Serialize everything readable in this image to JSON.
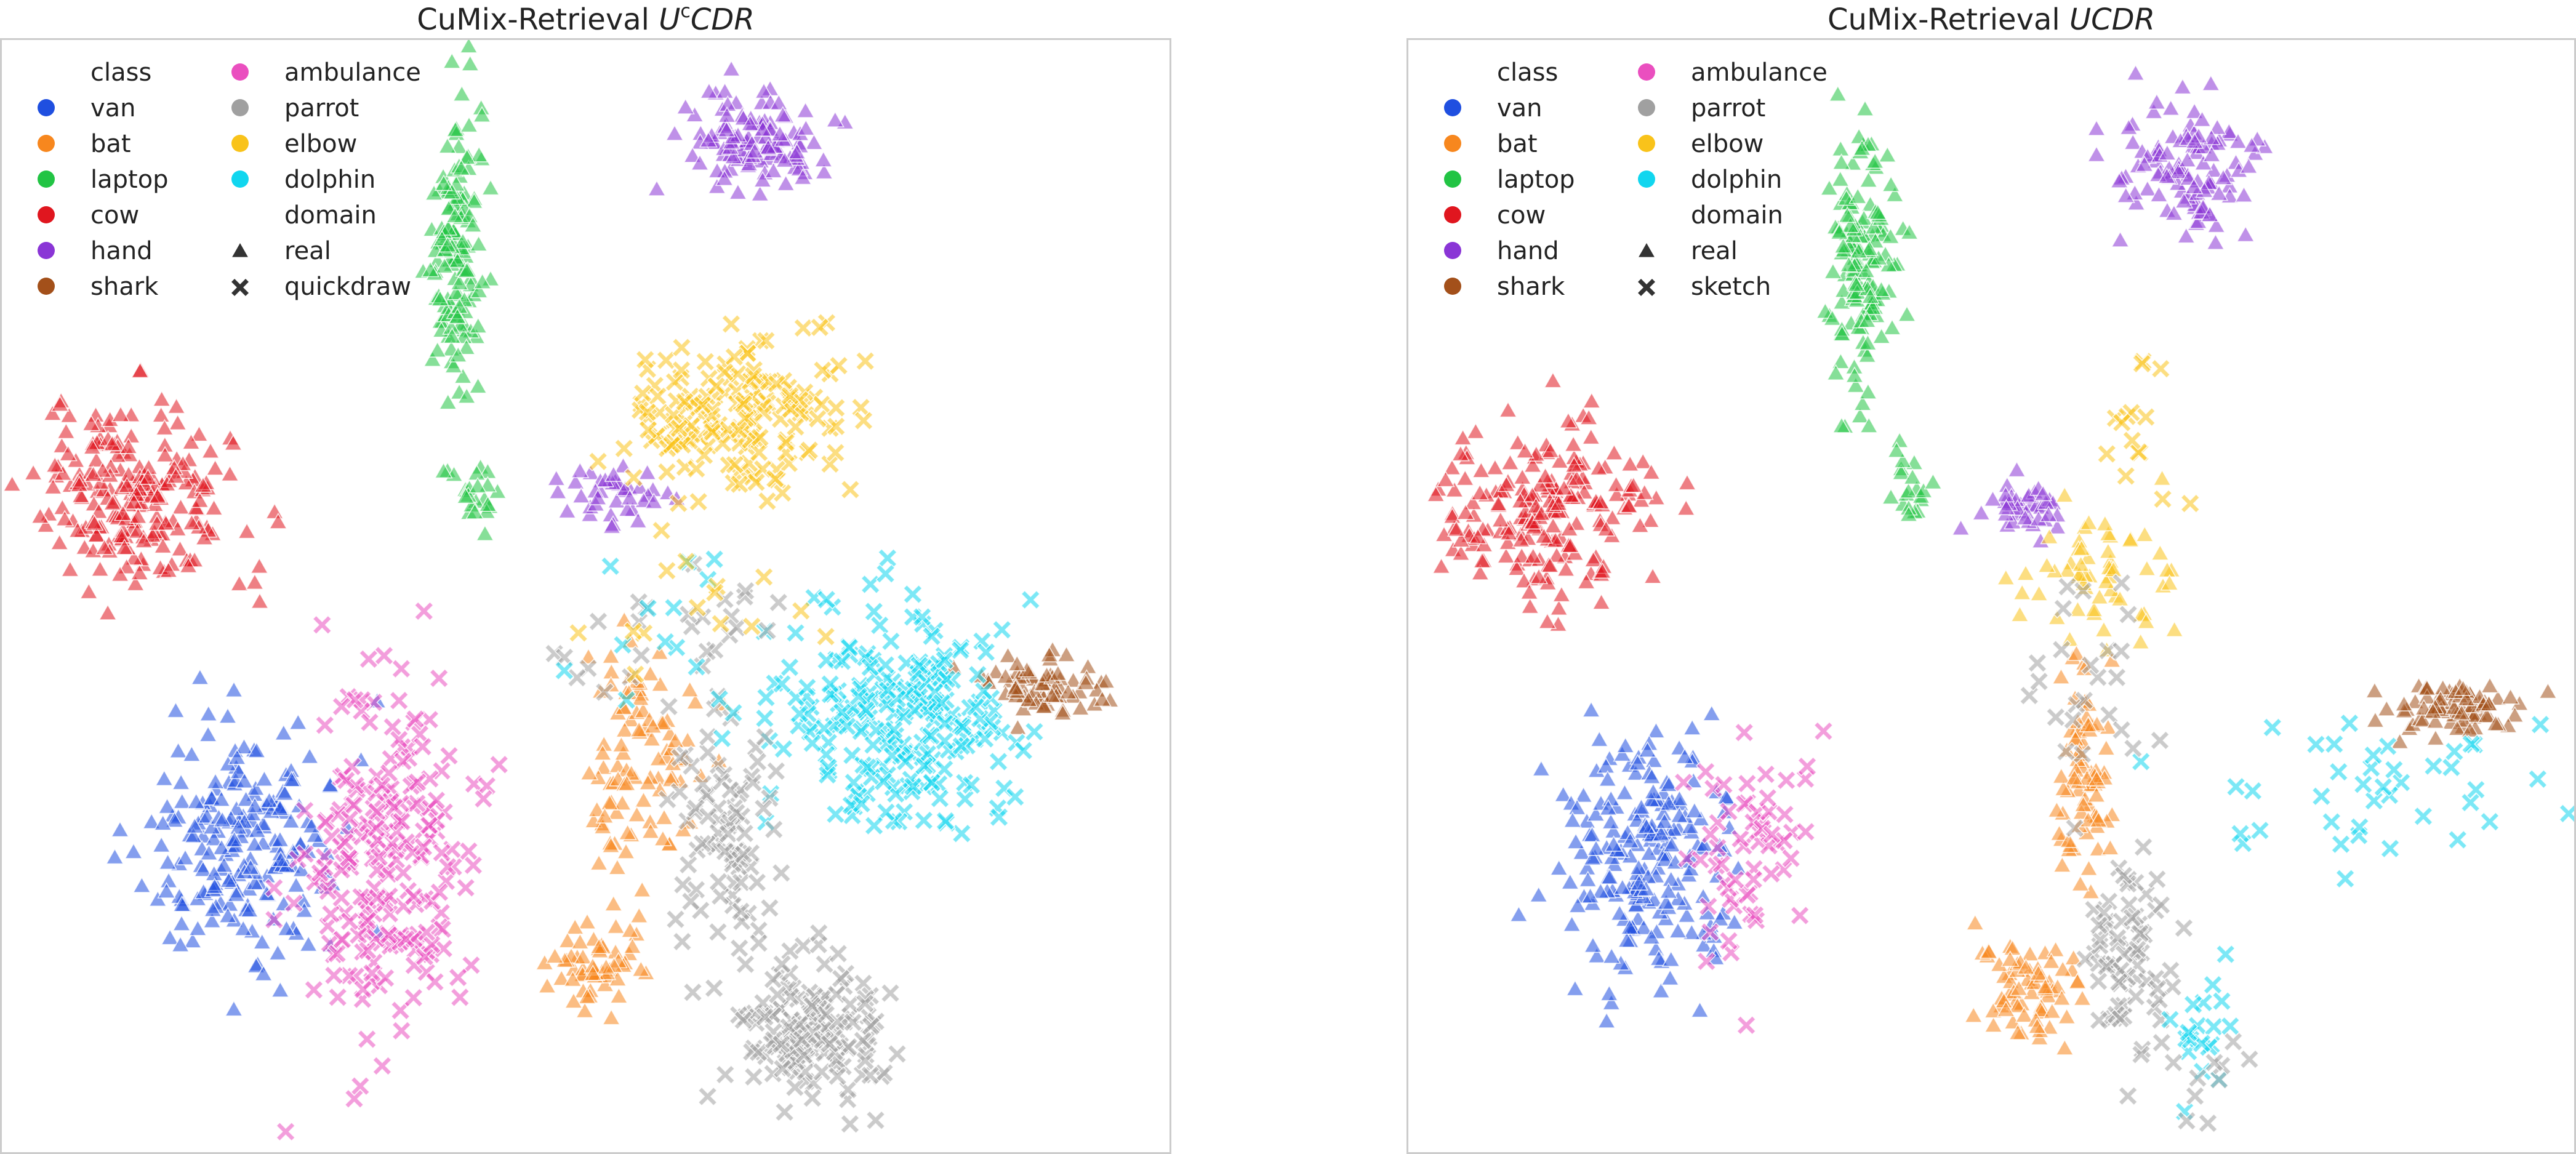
{
  "figure": {
    "background": "#ffffff",
    "frame_color": "#cccccc"
  },
  "chart_data": [
    {
      "type": "scatter",
      "title": "CuMix-Retrieval UᶜCDR",
      "title_parts": [
        "CuMix-Retrieval ",
        "U",
        "c",
        "CDR"
      ],
      "xlabel": "",
      "ylabel": "",
      "xlim": [
        0,
        100
      ],
      "ylim": [
        0,
        100
      ],
      "grid": false,
      "legend_position": "top-left",
      "legend": {
        "class_title": "class",
        "domain_title": "domain",
        "classes": [
          {
            "name": "van",
            "color": "#1f4fe0"
          },
          {
            "name": "bat",
            "color": "#f7871e"
          },
          {
            "name": "laptop",
            "color": "#22c444"
          },
          {
            "name": "cow",
            "color": "#e0161f"
          },
          {
            "name": "hand",
            "color": "#8a35d6"
          },
          {
            "name": "shark",
            "color": "#a3501a"
          },
          {
            "name": "ambulance",
            "color": "#ea4fbf"
          },
          {
            "name": "parrot",
            "color": "#a0a0a0"
          },
          {
            "name": "elbow",
            "color": "#f9c31a"
          },
          {
            "name": "dolphin",
            "color": "#11d6ef"
          }
        ],
        "domains": [
          {
            "name": "real",
            "marker": "triangle"
          },
          {
            "name": "quickdraw",
            "marker": "cross"
          }
        ]
      },
      "clusters": [
        {
          "class": "cow",
          "domain": "real",
          "cx": 12,
          "cy": 59,
          "rx": 7.5,
          "ry": 7.5,
          "n": 220
        },
        {
          "class": "laptop",
          "domain": "real",
          "cx": 39,
          "cy": 80,
          "rx": 1.8,
          "ry": 12,
          "n": 150
        },
        {
          "class": "laptop",
          "domain": "real",
          "cx": 41,
          "cy": 59,
          "rx": 1.5,
          "ry": 2.5,
          "n": 20
        },
        {
          "class": "hand",
          "domain": "real",
          "cx": 64,
          "cy": 91,
          "rx": 6,
          "ry": 4,
          "n": 120
        },
        {
          "class": "hand",
          "domain": "real",
          "cx": 52,
          "cy": 59,
          "rx": 4,
          "ry": 2.5,
          "n": 40
        },
        {
          "class": "elbow",
          "domain": "quickdraw",
          "cx": 63,
          "cy": 66,
          "rx": 9,
          "ry": 6,
          "n": 170
        },
        {
          "class": "shark",
          "domain": "real",
          "cx": 89,
          "cy": 42,
          "rx": 5,
          "ry": 2.5,
          "n": 70
        },
        {
          "class": "dolphin",
          "domain": "quickdraw",
          "cx": 77,
          "cy": 39,
          "rx": 9,
          "ry": 9,
          "n": 230
        },
        {
          "class": "van",
          "domain": "real",
          "cx": 21,
          "cy": 28,
          "rx": 7,
          "ry": 10,
          "n": 210
        },
        {
          "class": "ambulance",
          "domain": "quickdraw",
          "cx": 33,
          "cy": 26,
          "rx": 6,
          "ry": 15,
          "n": 220
        },
        {
          "class": "bat",
          "domain": "real",
          "cx": 55,
          "cy": 35,
          "rx": 4.5,
          "ry": 9,
          "n": 100
        },
        {
          "class": "bat",
          "domain": "real",
          "cx": 51,
          "cy": 17,
          "rx": 3.5,
          "ry": 3.5,
          "n": 60
        },
        {
          "class": "parrot",
          "domain": "quickdraw",
          "cx": 62,
          "cy": 29,
          "rx": 4,
          "ry": 10,
          "n": 80
        },
        {
          "class": "parrot",
          "domain": "quickdraw",
          "cx": 69,
          "cy": 11,
          "rx": 6,
          "ry": 6,
          "n": 150
        },
        {
          "class": "parrot",
          "domain": "quickdraw",
          "cx": 58,
          "cy": 45,
          "rx": 10,
          "ry": 8,
          "n": 30
        },
        {
          "class": "dolphin",
          "domain": "quickdraw",
          "cx": 58,
          "cy": 48,
          "rx": 10,
          "ry": 8,
          "n": 15
        },
        {
          "class": "elbow",
          "domain": "quickdraw",
          "cx": 60,
          "cy": 49,
          "rx": 10,
          "ry": 8,
          "n": 15
        }
      ]
    },
    {
      "type": "scatter",
      "title": "CuMix-Retrieval UCDR",
      "title_parts": [
        "CuMix-Retrieval ",
        "UCDR"
      ],
      "xlabel": "",
      "ylabel": "",
      "xlim": [
        0,
        100
      ],
      "ylim": [
        0,
        100
      ],
      "grid": false,
      "legend_position": "top-left",
      "legend": {
        "class_title": "class",
        "domain_title": "domain",
        "classes": [
          {
            "name": "van",
            "color": "#1f4fe0"
          },
          {
            "name": "bat",
            "color": "#f7871e"
          },
          {
            "name": "laptop",
            "color": "#22c444"
          },
          {
            "name": "cow",
            "color": "#e0161f"
          },
          {
            "name": "hand",
            "color": "#8a35d6"
          },
          {
            "name": "shark",
            "color": "#a3501a"
          },
          {
            "name": "ambulance",
            "color": "#ea4fbf"
          },
          {
            "name": "parrot",
            "color": "#a0a0a0"
          },
          {
            "name": "elbow",
            "color": "#f9c31a"
          },
          {
            "name": "dolphin",
            "color": "#11d6ef"
          }
        ],
        "domains": [
          {
            "name": "real",
            "marker": "triangle"
          },
          {
            "name": "sketch",
            "marker": "cross"
          }
        ]
      },
      "clusters": [
        {
          "class": "cow",
          "domain": "real",
          "cx": 12,
          "cy": 58,
          "rx": 7.5,
          "ry": 7,
          "n": 210
        },
        {
          "class": "laptop",
          "domain": "real",
          "cx": 39,
          "cy": 80,
          "rx": 2.5,
          "ry": 11,
          "n": 150
        },
        {
          "class": "laptop",
          "domain": "real",
          "cx": 43,
          "cy": 60,
          "rx": 1.5,
          "ry": 3,
          "n": 20
        },
        {
          "class": "hand",
          "domain": "real",
          "cx": 67,
          "cy": 88,
          "rx": 5,
          "ry": 6,
          "n": 110
        },
        {
          "class": "hand",
          "domain": "real",
          "cx": 53,
          "cy": 58,
          "rx": 3.5,
          "ry": 2.5,
          "n": 40
        },
        {
          "class": "elbow",
          "domain": "real",
          "cx": 59,
          "cy": 52,
          "rx": 6,
          "ry": 6,
          "n": 60
        },
        {
          "class": "shark",
          "domain": "real",
          "cx": 90,
          "cy": 40,
          "rx": 5,
          "ry": 2.5,
          "n": 80
        },
        {
          "class": "dolphin",
          "domain": "sketch",
          "cx": 82,
          "cy": 33,
          "rx": 12,
          "ry": 7,
          "n": 40
        },
        {
          "class": "van",
          "domain": "real",
          "cx": 20,
          "cy": 26,
          "rx": 6.5,
          "ry": 10,
          "n": 210
        },
        {
          "class": "ambulance",
          "domain": "sketch",
          "cx": 30,
          "cy": 27,
          "rx": 5,
          "ry": 10,
          "n": 60
        },
        {
          "class": "bat",
          "domain": "real",
          "cx": 58,
          "cy": 33,
          "rx": 2.5,
          "ry": 11,
          "n": 80
        },
        {
          "class": "bat",
          "domain": "real",
          "cx": 53,
          "cy": 15,
          "rx": 3.5,
          "ry": 3.5,
          "n": 70
        },
        {
          "class": "parrot",
          "domain": "sketch",
          "cx": 62,
          "cy": 18,
          "rx": 3,
          "ry": 8,
          "n": 70
        },
        {
          "class": "parrot",
          "domain": "sketch",
          "cx": 58,
          "cy": 42,
          "rx": 5,
          "ry": 8,
          "n": 25
        },
        {
          "class": "dolphin",
          "domain": "sketch",
          "cx": 68,
          "cy": 10,
          "rx": 3,
          "ry": 6,
          "n": 20
        },
        {
          "class": "parrot",
          "domain": "sketch",
          "cx": 69,
          "cy": 6,
          "rx": 4,
          "ry": 4,
          "n": 10
        },
        {
          "class": "elbow",
          "domain": "sketch",
          "cx": 62,
          "cy": 65,
          "rx": 4,
          "ry": 6,
          "n": 15
        }
      ]
    }
  ]
}
